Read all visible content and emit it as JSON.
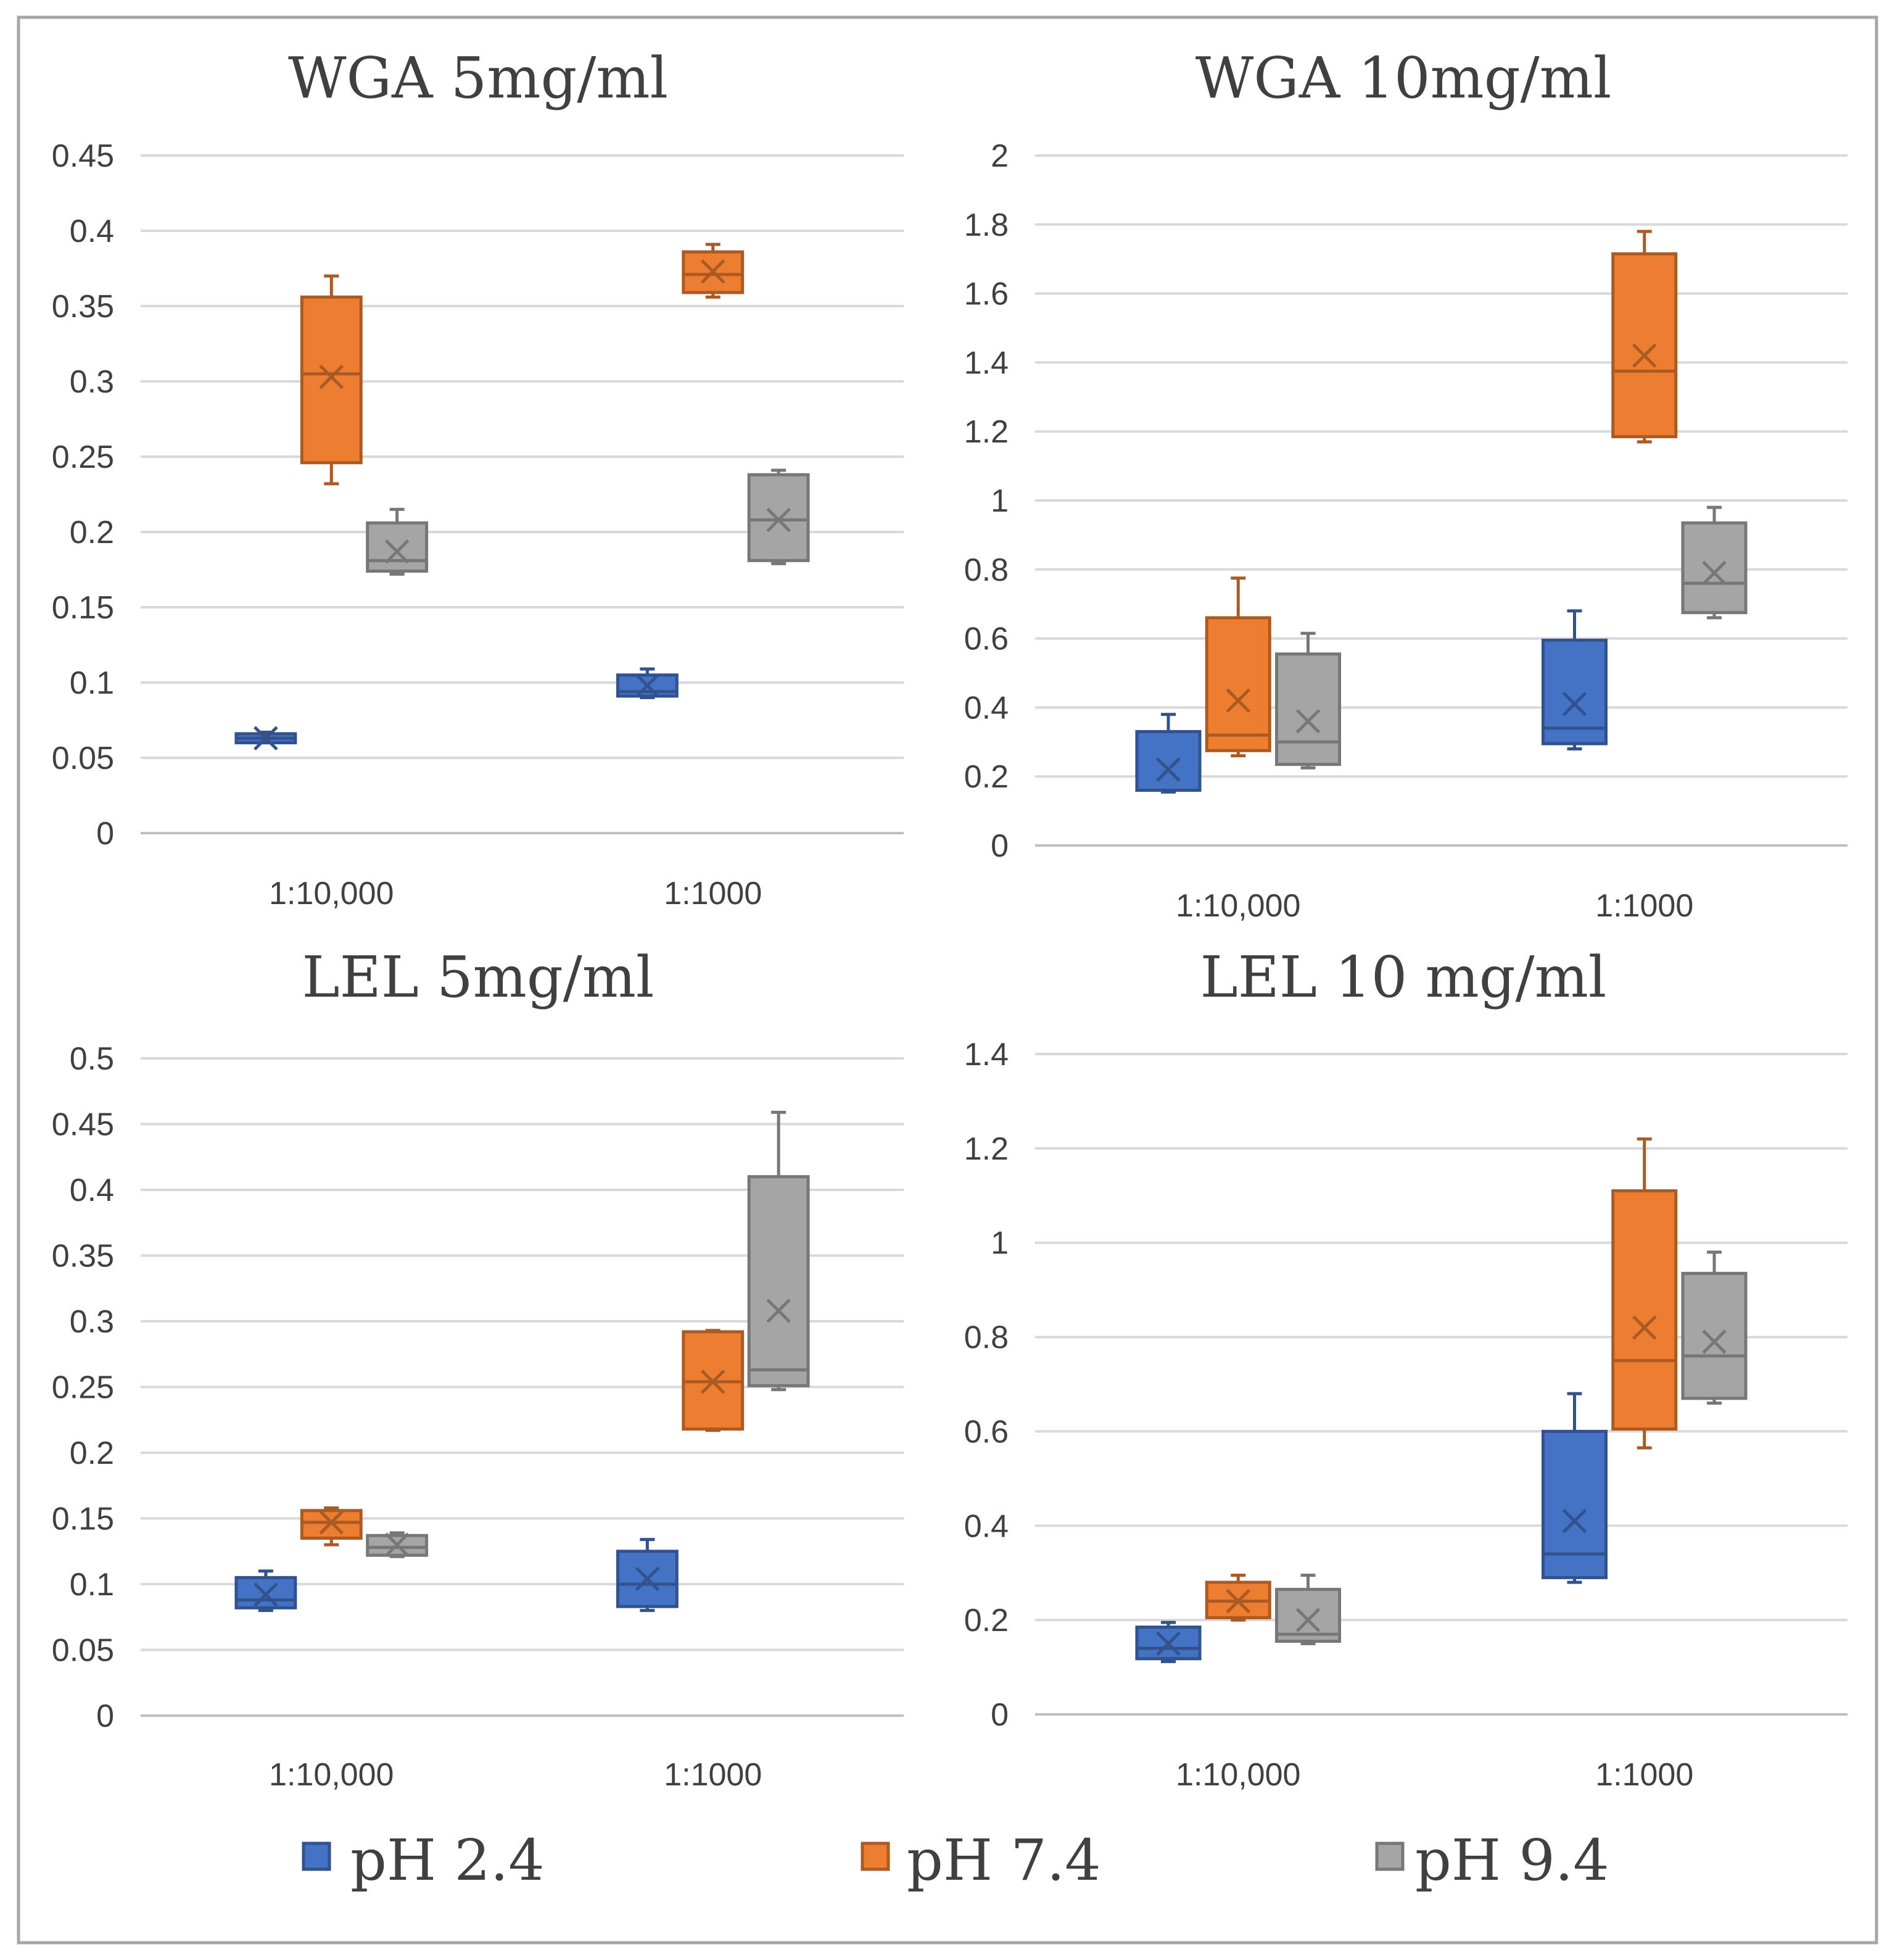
{
  "legend": [
    {
      "label": "pH 2.4",
      "color": "#4472c4"
    },
    {
      "label": "pH 7.4",
      "color": "#ed7d31"
    },
    {
      "label": "pH 9.4",
      "color": "#a5a5a5"
    }
  ],
  "chart_data": [
    {
      "type": "boxplot",
      "title": "WGA 5mg/ml",
      "categories": [
        "1:10,000",
        "1:1000"
      ],
      "ylim": [
        0,
        0.45
      ],
      "yticks": [
        0,
        0.05,
        0.1,
        0.15,
        0.2,
        0.25,
        0.3,
        0.35,
        0.4,
        0.45
      ],
      "ytick_labels": [
        "0",
        "0.05",
        "0.1",
        "0.15",
        "0.2",
        "0.25",
        "0.3",
        "0.35",
        "0.4",
        "0.45"
      ],
      "series": [
        {
          "name": "pH 2.4",
          "boxes": [
            {
              "min": 0.06,
              "q1": 0.06,
              "median": 0.063,
              "q3": 0.066,
              "max": 0.067,
              "mean": 0.063
            },
            {
              "min": 0.09,
              "q1": 0.091,
              "median": 0.094,
              "q3": 0.105,
              "max": 0.109,
              "mean": 0.098
            }
          ]
        },
        {
          "name": "pH 7.4",
          "boxes": [
            {
              "min": 0.232,
              "q1": 0.246,
              "median": 0.305,
              "q3": 0.356,
              "max": 0.37,
              "mean": 0.303
            },
            {
              "min": 0.356,
              "q1": 0.359,
              "median": 0.371,
              "q3": 0.386,
              "max": 0.391,
              "mean": 0.373
            }
          ]
        },
        {
          "name": "pH 9.4",
          "boxes": [
            {
              "min": 0.172,
              "q1": 0.174,
              "median": 0.181,
              "q3": 0.206,
              "max": 0.215,
              "mean": 0.187
            },
            {
              "min": 0.179,
              "q1": 0.181,
              "median": 0.208,
              "q3": 0.238,
              "max": 0.241,
              "mean": 0.208
            }
          ]
        }
      ]
    },
    {
      "type": "boxplot",
      "title": "WGA 10mg/ml",
      "categories": [
        "1:10,000",
        "1:1000"
      ],
      "ylim": [
        0,
        2
      ],
      "yticks": [
        0,
        0.2,
        0.4,
        0.6,
        0.8,
        1,
        1.2,
        1.4,
        1.6,
        1.8,
        2
      ],
      "ytick_labels": [
        "0",
        "0.2",
        "0.4",
        "0.6",
        "0.8",
        "1",
        "1.2",
        "1.4",
        "1.6",
        "1.8",
        "2"
      ],
      "series": [
        {
          "name": "pH 2.4",
          "boxes": [
            {
              "min": 0.155,
              "q1": 0.16,
              "median": 0.16,
              "q3": 0.33,
              "max": 0.38,
              "mean": 0.22
            },
            {
              "min": 0.28,
              "q1": 0.295,
              "median": 0.34,
              "q3": 0.595,
              "max": 0.68,
              "mean": 0.41
            }
          ]
        },
        {
          "name": "pH 7.4",
          "boxes": [
            {
              "min": 0.26,
              "q1": 0.275,
              "median": 0.32,
              "q3": 0.66,
              "max": 0.775,
              "mean": 0.42
            },
            {
              "min": 1.17,
              "q1": 1.185,
              "median": 1.375,
              "q3": 1.715,
              "max": 1.78,
              "mean": 1.42
            }
          ]
        },
        {
          "name": "pH 9.4",
          "boxes": [
            {
              "min": 0.225,
              "q1": 0.235,
              "median": 0.3,
              "q3": 0.555,
              "max": 0.615,
              "mean": 0.36
            },
            {
              "min": 0.66,
              "q1": 0.675,
              "median": 0.76,
              "q3": 0.935,
              "max": 0.98,
              "mean": 0.79
            }
          ]
        }
      ]
    },
    {
      "type": "boxplot",
      "title": "LEL 5mg/ml",
      "categories": [
        "1:10,000",
        "1:1000"
      ],
      "ylim": [
        0,
        0.5
      ],
      "yticks": [
        0,
        0.05,
        0.1,
        0.15,
        0.2,
        0.25,
        0.3,
        0.35,
        0.4,
        0.45,
        0.5
      ],
      "ytick_labels": [
        "0",
        "0.05",
        "0.1",
        "0.15",
        "0.2",
        "0.25",
        "0.3",
        "0.35",
        "0.4",
        "0.45",
        "0.5"
      ],
      "series": [
        {
          "name": "pH 2.4",
          "boxes": [
            {
              "min": 0.08,
              "q1": 0.082,
              "median": 0.088,
              "q3": 0.105,
              "max": 0.11,
              "mean": 0.092
            },
            {
              "min": 0.08,
              "q1": 0.083,
              "median": 0.1,
              "q3": 0.125,
              "max": 0.134,
              "mean": 0.104
            }
          ]
        },
        {
          "name": "pH 7.4",
          "boxes": [
            {
              "min": 0.13,
              "q1": 0.135,
              "median": 0.147,
              "q3": 0.156,
              "max": 0.158,
              "mean": 0.147
            },
            {
              "min": 0.217,
              "q1": 0.218,
              "median": 0.254,
              "q3": 0.292,
              "max": 0.293,
              "mean": 0.254
            }
          ]
        },
        {
          "name": "pH 9.4",
          "boxes": [
            {
              "min": 0.121,
              "q1": 0.122,
              "median": 0.128,
              "q3": 0.137,
              "max": 0.139,
              "mean": 0.13
            },
            {
              "min": 0.248,
              "q1": 0.251,
              "median": 0.263,
              "q3": 0.41,
              "max": 0.459,
              "mean": 0.308
            }
          ]
        }
      ]
    },
    {
      "type": "boxplot",
      "title": "LEL 10 mg/ml",
      "categories": [
        "1:10,000",
        "1:1000"
      ],
      "ylim": [
        0,
        1.4
      ],
      "yticks": [
        0,
        0.2,
        0.4,
        0.6,
        0.8,
        1,
        1.2,
        1.4
      ],
      "ytick_labels": [
        "0",
        "0.2",
        "0.4",
        "0.6",
        "0.8",
        "1",
        "1.2",
        "1.4"
      ],
      "series": [
        {
          "name": "pH 2.4",
          "boxes": [
            {
              "min": 0.112,
              "q1": 0.118,
              "median": 0.14,
              "q3": 0.185,
              "max": 0.195,
              "mean": 0.15
            },
            {
              "min": 0.28,
              "q1": 0.29,
              "median": 0.34,
              "q3": 0.6,
              "max": 0.68,
              "mean": 0.41
            }
          ]
        },
        {
          "name": "pH 7.4",
          "boxes": [
            {
              "min": 0.2,
              "q1": 0.205,
              "median": 0.24,
              "q3": 0.28,
              "max": 0.295,
              "mean": 0.24
            },
            {
              "min": 0.565,
              "q1": 0.605,
              "median": 0.75,
              "q3": 1.11,
              "max": 1.22,
              "mean": 0.82
            }
          ]
        },
        {
          "name": "pH 9.4",
          "boxes": [
            {
              "min": 0.15,
              "q1": 0.155,
              "median": 0.17,
              "q3": 0.265,
              "max": 0.295,
              "mean": 0.2
            },
            {
              "min": 0.66,
              "q1": 0.67,
              "median": 0.76,
              "q3": 0.935,
              "max": 0.98,
              "mean": 0.79
            }
          ]
        }
      ]
    }
  ]
}
